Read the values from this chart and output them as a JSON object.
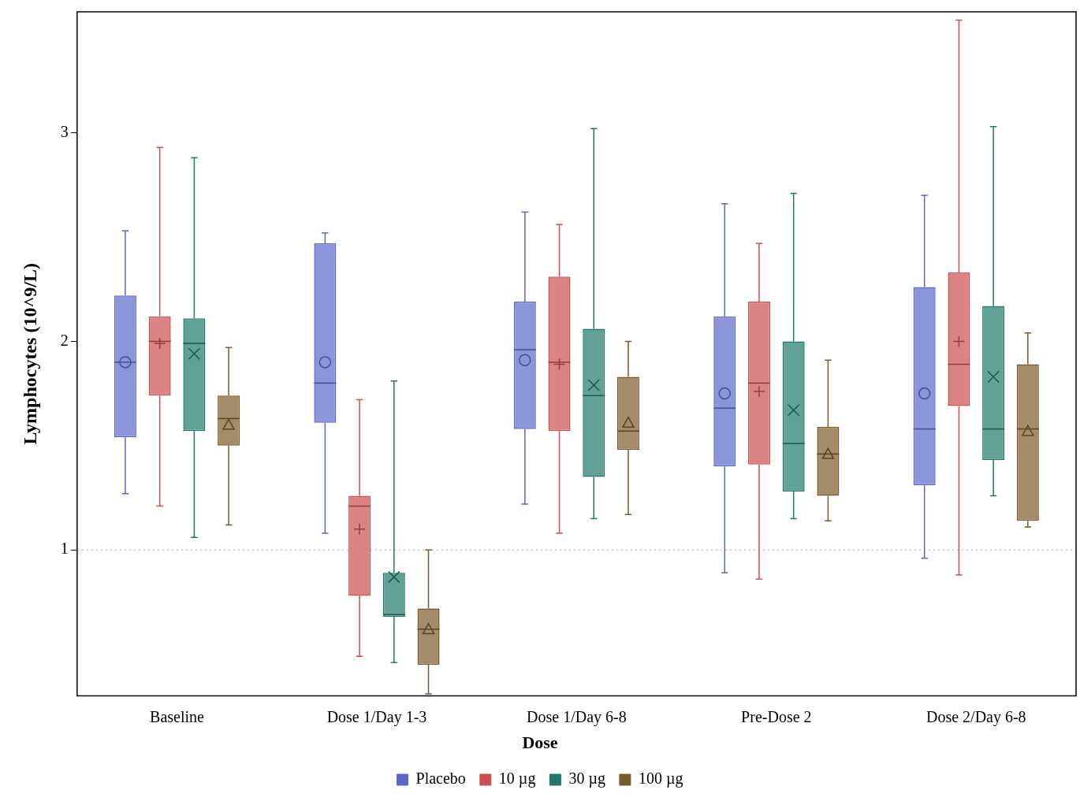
{
  "chart_data": {
    "type": "box",
    "ylabel": "Lymphocytes (10^9/L)",
    "legend_title": "Dose",
    "legend": "bottom",
    "grid": false,
    "categories": [
      "Baseline",
      "Dose 1/Day 1-3",
      "Dose 1/Day 6-8",
      "Pre-Dose 2",
      "Dose 2/Day 6-8"
    ],
    "ylim": [
      0.3,
      3.58
    ],
    "yticks": [
      1,
      2,
      3
    ],
    "ref_lines": [
      {
        "axis": "y",
        "value": 1,
        "color": "#a0a0a0",
        "line_style": "dotted"
      }
    ],
    "series": [
      {
        "name": "Placebo",
        "color": "#5a68c8",
        "marker": "circle",
        "boxes": [
          {
            "low": 1.27,
            "q1": 1.54,
            "median": 1.9,
            "q3": 2.22,
            "high": 2.53,
            "mean": 1.9
          },
          {
            "low": 1.08,
            "q1": 1.61,
            "median": 1.8,
            "q3": 2.47,
            "high": 2.52,
            "mean": 1.9
          },
          {
            "low": 1.22,
            "q1": 1.58,
            "median": 1.96,
            "q3": 2.19,
            "high": 2.62,
            "mean": 1.91
          },
          {
            "low": 0.89,
            "q1": 1.4,
            "median": 1.68,
            "q3": 2.12,
            "high": 2.66,
            "mean": 1.75
          },
          {
            "low": 0.96,
            "q1": 1.31,
            "median": 1.58,
            "q3": 2.26,
            "high": 2.7,
            "mean": 1.75
          }
        ]
      },
      {
        "name": "10 µg",
        "color": "#cc4f4f",
        "marker": "cross",
        "boxes": [
          {
            "low": 1.21,
            "q1": 1.74,
            "median": 2.0,
            "q3": 2.12,
            "high": 2.93,
            "mean": 1.99
          },
          {
            "low": 0.49,
            "q1": 0.78,
            "median": 1.21,
            "q3": 1.26,
            "high": 1.72,
            "mean": 1.1
          },
          {
            "low": 1.08,
            "q1": 1.57,
            "median": 1.9,
            "q3": 2.31,
            "high": 2.56,
            "mean": 1.89
          },
          {
            "low": 0.86,
            "q1": 1.41,
            "median": 1.8,
            "q3": 2.19,
            "high": 2.47,
            "mean": 1.76
          },
          {
            "low": 0.88,
            "q1": 1.69,
            "median": 1.89,
            "q3": 2.33,
            "high": 3.54,
            "mean": 2.0
          }
        ]
      },
      {
        "name": "30 µg",
        "color": "#1f7868",
        "marker": "x",
        "boxes": [
          {
            "low": 1.06,
            "q1": 1.57,
            "median": 1.99,
            "q3": 2.11,
            "high": 2.88,
            "mean": 1.94
          },
          {
            "low": 0.46,
            "q1": 0.68,
            "median": 0.69,
            "q3": 0.89,
            "high": 1.81,
            "mean": 0.87
          },
          {
            "low": 1.15,
            "q1": 1.35,
            "median": 1.74,
            "q3": 2.06,
            "high": 3.02,
            "mean": 1.79
          },
          {
            "low": 1.15,
            "q1": 1.28,
            "median": 1.51,
            "q3": 2.0,
            "high": 2.71,
            "mean": 1.67
          },
          {
            "low": 1.26,
            "q1": 1.43,
            "median": 1.58,
            "q3": 2.17,
            "high": 3.03,
            "mean": 1.83
          }
        ]
      },
      {
        "name": "100 µg",
        "color": "#7a5a28",
        "marker": "triangle",
        "boxes": [
          {
            "low": 1.12,
            "q1": 1.5,
            "median": 1.63,
            "q3": 1.74,
            "high": 1.97,
            "mean": 1.6
          },
          {
            "low": 0.31,
            "q1": 0.45,
            "median": 0.62,
            "q3": 0.72,
            "high": 1.0,
            "mean": 0.62
          },
          {
            "low": 1.17,
            "q1": 1.48,
            "median": 1.57,
            "q3": 1.83,
            "high": 2.0,
            "mean": 1.61
          },
          {
            "low": 1.14,
            "q1": 1.26,
            "median": 1.46,
            "q3": 1.59,
            "high": 1.91,
            "mean": 1.46
          },
          {
            "low": 1.11,
            "q1": 1.14,
            "median": 1.58,
            "q3": 1.89,
            "high": 2.04,
            "mean": 1.57
          }
        ]
      }
    ]
  }
}
